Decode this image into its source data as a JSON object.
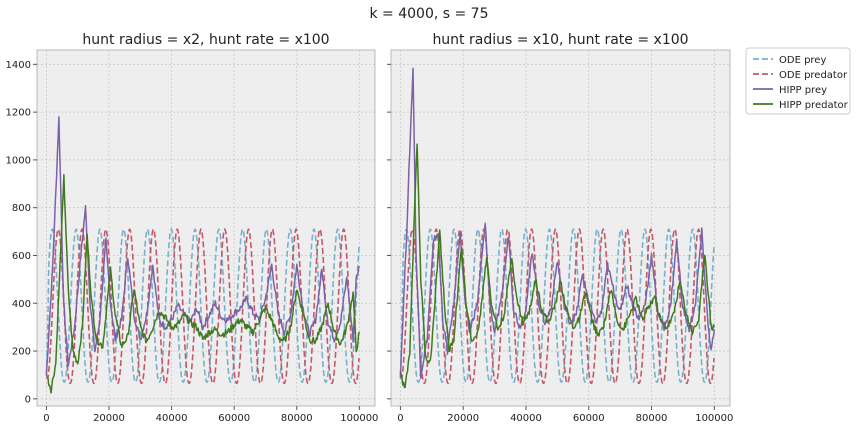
{
  "figure": {
    "suptitle": "k = 4000, s = 75"
  },
  "colors": {
    "ode_prey": "#7ab0cc",
    "ode_predator": "#c25a6a",
    "hipp_prey": "#7b62a6",
    "hipp_predator": "#3f7a1f",
    "panel_background": "#eeeeee",
    "grid": "#c8c8c8"
  },
  "legend": {
    "placement": "right, outside upper",
    "items": [
      "ODE prey",
      "ODE predator",
      "HIPP prey",
      "HIPP predator"
    ]
  },
  "chart_data": [
    {
      "type": "line",
      "title": "hunt radius = x2, hunt rate = x100",
      "xlabel": "",
      "ylabel": "",
      "xlim": [
        -3000,
        105000
      ],
      "ylim": [
        -30,
        1460
      ],
      "xticks": [
        0,
        20000,
        40000,
        60000,
        80000,
        100000
      ],
      "yticks": [
        0,
        200,
        400,
        600,
        800,
        1000,
        1200,
        1400
      ],
      "grid": true,
      "ode": {
        "period": 7600,
        "prey_first_peak": 1900,
        "predator_lag": 1900,
        "prey_range": [
          70,
          710
        ],
        "predator_range": [
          65,
          710
        ],
        "x_end": 100000
      },
      "series": [
        {
          "name": "HIPP prey",
          "style": "solid",
          "points": [
            [
              0,
              100
            ],
            [
              2000,
              550
            ],
            [
              4000,
              1175
            ],
            [
              5500,
              400
            ],
            [
              7000,
              140
            ],
            [
              9000,
              300
            ],
            [
              11000,
              600
            ],
            [
              12500,
              800
            ],
            [
              14000,
              400
            ],
            [
              15500,
              200
            ],
            [
              17000,
              320
            ],
            [
              19000,
              660
            ],
            [
              20500,
              400
            ],
            [
              22000,
              250
            ],
            [
              24000,
              330
            ],
            [
              26000,
              600
            ],
            [
              28000,
              350
            ],
            [
              30000,
              250
            ],
            [
              32000,
              350
            ],
            [
              34000,
              560
            ],
            [
              36000,
              330
            ],
            [
              38000,
              300
            ],
            [
              40000,
              330
            ],
            [
              42000,
              390
            ],
            [
              44000,
              350
            ],
            [
              46000,
              320
            ],
            [
              48000,
              380
            ],
            [
              50000,
              300
            ],
            [
              52000,
              350
            ],
            [
              54000,
              400
            ],
            [
              56000,
              340
            ],
            [
              58000,
              330
            ],
            [
              60000,
              360
            ],
            [
              62000,
              380
            ],
            [
              64000,
              420
            ],
            [
              66000,
              360
            ],
            [
              68000,
              330
            ],
            [
              70000,
              420
            ],
            [
              72000,
              560
            ],
            [
              74000,
              360
            ],
            [
              76000,
              280
            ],
            [
              78000,
              350
            ],
            [
              80000,
              560
            ],
            [
              82000,
              380
            ],
            [
              84000,
              270
            ],
            [
              86000,
              330
            ],
            [
              88000,
              540
            ],
            [
              90000,
              320
            ],
            [
              92000,
              250
            ],
            [
              94000,
              320
            ],
            [
              96000,
              510
            ],
            [
              98000,
              250
            ],
            [
              99000,
              500
            ],
            [
              100000,
              555
            ]
          ]
        },
        {
          "name": "HIPP predator",
          "style": "solid",
          "points": [
            [
              0,
              100
            ],
            [
              1500,
              40
            ],
            [
              3000,
              150
            ],
            [
              4500,
              600
            ],
            [
              5600,
              925
            ],
            [
              7000,
              450
            ],
            [
              8500,
              200
            ],
            [
              10000,
              150
            ],
            [
              11500,
              300
            ],
            [
              13000,
              685
            ],
            [
              14500,
              400
            ],
            [
              16000,
              250
            ],
            [
              18000,
              220
            ],
            [
              20500,
              540
            ],
            [
              22000,
              350
            ],
            [
              24000,
              220
            ],
            [
              26000,
              260
            ],
            [
              28000,
              460
            ],
            [
              30000,
              300
            ],
            [
              32000,
              240
            ],
            [
              34000,
              300
            ],
            [
              36000,
              370
            ],
            [
              38000,
              340
            ],
            [
              40000,
              300
            ],
            [
              42000,
              310
            ],
            [
              44000,
              350
            ],
            [
              46000,
              320
            ],
            [
              48000,
              300
            ],
            [
              50000,
              250
            ],
            [
              52000,
              280
            ],
            [
              54000,
              290
            ],
            [
              56000,
              270
            ],
            [
              58000,
              280
            ],
            [
              60000,
              310
            ],
            [
              62000,
              330
            ],
            [
              64000,
              300
            ],
            [
              66000,
              280
            ],
            [
              68000,
              330
            ],
            [
              70000,
              380
            ],
            [
              72000,
              330
            ],
            [
              74000,
              260
            ],
            [
              76000,
              240
            ],
            [
              78000,
              300
            ],
            [
              80000,
              460
            ],
            [
              82000,
              360
            ],
            [
              84000,
              250
            ],
            [
              86000,
              240
            ],
            [
              88000,
              300
            ],
            [
              90000,
              400
            ],
            [
              92000,
              280
            ],
            [
              94000,
              230
            ],
            [
              96000,
              300
            ],
            [
              98000,
              440
            ],
            [
              99000,
              200
            ],
            [
              100000,
              280
            ]
          ]
        }
      ]
    },
    {
      "type": "line",
      "title": "hunt radius = x10, hunt rate = x100",
      "xlabel": "",
      "ylabel": "",
      "xlim": [
        -3000,
        105000
      ],
      "ylim": [
        -30,
        1460
      ],
      "xticks": [
        0,
        20000,
        40000,
        60000,
        80000,
        100000
      ],
      "yticks": [
        0,
        200,
        400,
        600,
        800,
        1000,
        1200,
        1400
      ],
      "grid": true,
      "ode": {
        "period": 7600,
        "prey_first_peak": 1900,
        "predator_lag": 1900,
        "prey_range": [
          70,
          710
        ],
        "predator_range": [
          65,
          710
        ],
        "x_end": 100000
      },
      "series": [
        {
          "name": "HIPP prey",
          "style": "solid",
          "points": [
            [
              0,
              100
            ],
            [
              2000,
              700
            ],
            [
              4000,
              1385
            ],
            [
              5000,
              600
            ],
            [
              6500,
              100
            ],
            [
              8500,
              250
            ],
            [
              10500,
              650
            ],
            [
              12000,
              700
            ],
            [
              13500,
              330
            ],
            [
              15000,
              200
            ],
            [
              17000,
              400
            ],
            [
              19000,
              700
            ],
            [
              20500,
              420
            ],
            [
              22000,
              280
            ],
            [
              24500,
              400
            ],
            [
              27000,
              730
            ],
            [
              28500,
              400
            ],
            [
              30000,
              280
            ],
            [
              32000,
              400
            ],
            [
              34500,
              690
            ],
            [
              36000,
              380
            ],
            [
              38000,
              300
            ],
            [
              40000,
              380
            ],
            [
              42000,
              620
            ],
            [
              44000,
              400
            ],
            [
              46000,
              320
            ],
            [
              48000,
              380
            ],
            [
              50000,
              580
            ],
            [
              52000,
              400
            ],
            [
              54000,
              320
            ],
            [
              56000,
              350
            ],
            [
              58000,
              520
            ],
            [
              60000,
              410
            ],
            [
              62000,
              320
            ],
            [
              64000,
              360
            ],
            [
              66000,
              560
            ],
            [
              68000,
              450
            ],
            [
              70000,
              360
            ],
            [
              72000,
              480
            ],
            [
              74000,
              400
            ],
            [
              76000,
              330
            ],
            [
              78000,
              400
            ],
            [
              80000,
              600
            ],
            [
              82000,
              360
            ],
            [
              84000,
              300
            ],
            [
              86000,
              380
            ],
            [
              88000,
              660
            ],
            [
              90000,
              380
            ],
            [
              92000,
              290
            ],
            [
              94000,
              400
            ],
            [
              96000,
              700
            ],
            [
              98000,
              310
            ],
            [
              99000,
              200
            ],
            [
              100000,
              290
            ]
          ]
        },
        {
          "name": "HIPP predator",
          "style": "solid",
          "points": [
            [
              0,
              100
            ],
            [
              1500,
              40
            ],
            [
              3000,
              200
            ],
            [
              4500,
              800
            ],
            [
              5300,
              1075
            ],
            [
              6500,
              500
            ],
            [
              8000,
              180
            ],
            [
              9500,
              150
            ],
            [
              11000,
              400
            ],
            [
              12500,
              710
            ],
            [
              14000,
              400
            ],
            [
              15500,
              200
            ],
            [
              17000,
              250
            ],
            [
              19500,
              640
            ],
            [
              21000,
              380
            ],
            [
              23000,
              230
            ],
            [
              25000,
              300
            ],
            [
              27500,
              600
            ],
            [
              29000,
              400
            ],
            [
              31000,
              290
            ],
            [
              33000,
              350
            ],
            [
              35500,
              600
            ],
            [
              37000,
              420
            ],
            [
              39000,
              320
            ],
            [
              41000,
              360
            ],
            [
              43000,
              500
            ],
            [
              45000,
              380
            ],
            [
              47000,
              320
            ],
            [
              49000,
              380
            ],
            [
              51000,
              490
            ],
            [
              53000,
              370
            ],
            [
              55000,
              300
            ],
            [
              57000,
              330
            ],
            [
              59000,
              450
            ],
            [
              61000,
              330
            ],
            [
              63000,
              260
            ],
            [
              65000,
              320
            ],
            [
              67000,
              460
            ],
            [
              69000,
              330
            ],
            [
              71000,
              290
            ],
            [
              73000,
              350
            ],
            [
              75000,
              420
            ],
            [
              77000,
              330
            ],
            [
              79000,
              380
            ],
            [
              81000,
              430
            ],
            [
              83000,
              320
            ],
            [
              85000,
              300
            ],
            [
              87000,
              350
            ],
            [
              89000,
              490
            ],
            [
              91000,
              360
            ],
            [
              93000,
              280
            ],
            [
              95000,
              330
            ],
            [
              97000,
              610
            ],
            [
              99000,
              300
            ],
            [
              100000,
              300
            ]
          ]
        }
      ]
    }
  ]
}
